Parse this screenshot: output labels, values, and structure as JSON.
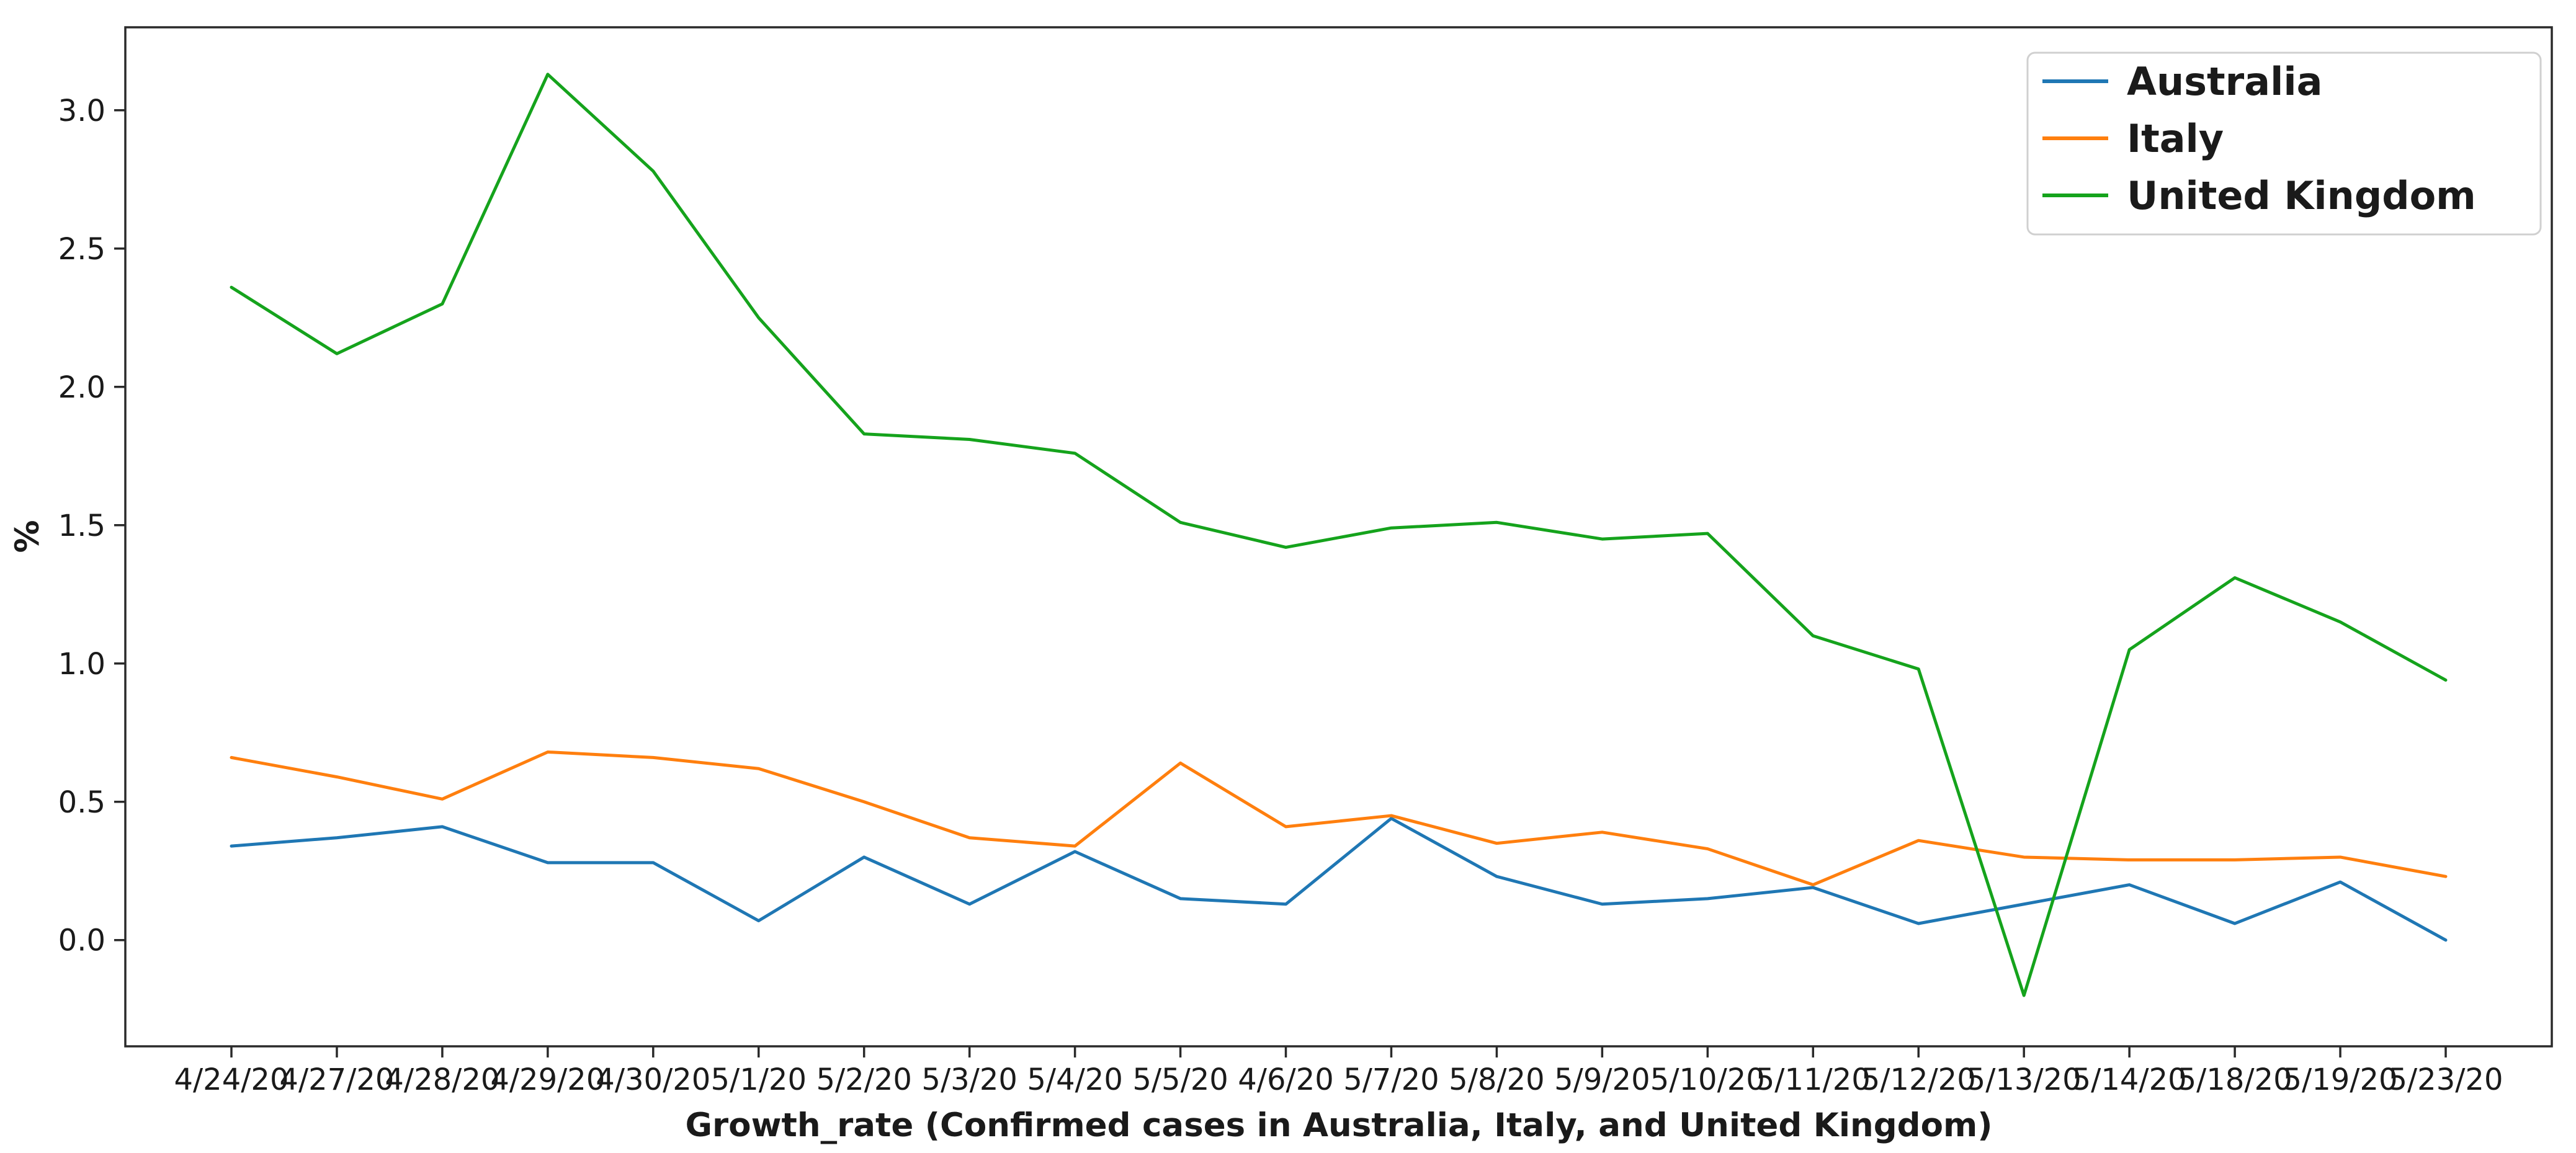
{
  "figure": {
    "background": "#ffffff",
    "frame_color": "#2a2a2a"
  },
  "chart_data": {
    "type": "line",
    "title": "",
    "xlabel": "Growth_rate (Confirmed cases in Australia, Italy, and United Kingdom)",
    "ylabel": "%",
    "categories": [
      "4/24/20",
      "4/27/20",
      "4/28/20",
      "4/29/20",
      "4/30/20",
      "5/1/20",
      "5/2/20",
      "5/3/20",
      "5/4/20",
      "5/5/20",
      "4/6/20",
      "5/7/20",
      "5/8/20",
      "5/9/20",
      "5/10/20",
      "5/11/20",
      "5/12/20",
      "5/13/20",
      "5/14/20",
      "5/18/20",
      "5/19/20",
      "5/23/20"
    ],
    "series": [
      {
        "name": "Australia",
        "color": "#1f77b4",
        "values": [
          0.34,
          0.37,
          0.41,
          0.28,
          0.28,
          0.07,
          0.3,
          0.13,
          0.32,
          0.15,
          0.13,
          0.44,
          0.23,
          0.13,
          0.15,
          0.19,
          0.06,
          0.13,
          0.2,
          0.06,
          0.21,
          0.0
        ]
      },
      {
        "name": "Italy",
        "color": "#ff7f0e",
        "values": [
          0.66,
          0.59,
          0.51,
          0.68,
          0.66,
          0.62,
          0.5,
          0.37,
          0.34,
          0.64,
          0.41,
          0.45,
          0.35,
          0.39,
          0.33,
          0.2,
          0.36,
          0.3,
          0.29,
          0.29,
          0.3,
          0.23
        ]
      },
      {
        "name": "United Kingdom",
        "color": "#15a31c",
        "values": [
          2.36,
          2.12,
          2.3,
          3.13,
          2.78,
          2.25,
          1.83,
          1.81,
          1.76,
          1.51,
          1.42,
          1.49,
          1.51,
          1.45,
          1.47,
          1.1,
          0.98,
          -0.2,
          1.05,
          1.31,
          1.15,
          0.94
        ]
      }
    ],
    "y_ticks": [
      "0.0",
      "0.5",
      "1.0",
      "1.5",
      "2.0",
      "2.5",
      "3.0"
    ],
    "y_tick_values": [
      0.0,
      0.5,
      1.0,
      1.5,
      2.0,
      2.5,
      3.0
    ],
    "ylim": [
      -0.384,
      3.3
    ],
    "grid": false,
    "legend_position": "upper right"
  }
}
